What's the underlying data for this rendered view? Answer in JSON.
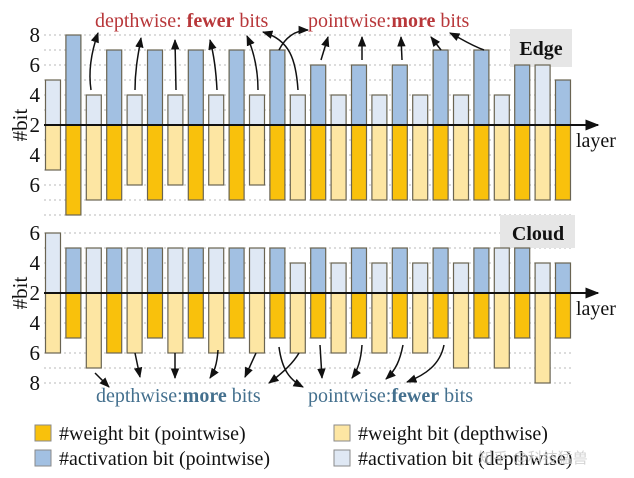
{
  "chart_data": [
    {
      "type": "bar",
      "panel": "Edge",
      "title": "Edge",
      "ylabel": "#bit",
      "xlabel": "layer",
      "layer_types": [
        "depthwise",
        "pointwise",
        "depthwise",
        "pointwise",
        "depthwise",
        "pointwise",
        "depthwise",
        "pointwise",
        "depthwise",
        "pointwise",
        "depthwise",
        "pointwise",
        "depthwise",
        "pointwise",
        "depthwise",
        "pointwise",
        "depthwise",
        "pointwise",
        "depthwise",
        "pointwise",
        "depthwise",
        "pointwise",
        "depthwise",
        "pointwise",
        "depthwise",
        "pointwise"
      ],
      "series": [
        {
          "name": "#activation bit",
          "direction": "up",
          "values": [
            5,
            8,
            4,
            7,
            4,
            7,
            4,
            7,
            4,
            7,
            4,
            7,
            4,
            6,
            4,
            6,
            4,
            6,
            4,
            7,
            4,
            7,
            4,
            6,
            6,
            5
          ]
        },
        {
          "name": "#weight bit",
          "direction": "down",
          "values": [
            5,
            8,
            7,
            7,
            6,
            7,
            6,
            7,
            6,
            7,
            6,
            7,
            7,
            7,
            7,
            7,
            7,
            7,
            7,
            7,
            7,
            7,
            7,
            7,
            7,
            7
          ]
        }
      ],
      "y_ticks_up": [
        "2",
        "4",
        "6",
        "8"
      ],
      "y_ticks_down": [
        "4",
        "6"
      ],
      "ylim_up": [
        2,
        8
      ],
      "ylim_down": [
        2,
        8
      ],
      "grid": true,
      "annotations": [
        {
          "text_plain": "depthwise: ",
          "text_bold": "fewer",
          "text_tail": " bits",
          "color": "#b8373a"
        },
        {
          "text_plain": "pointwise:",
          "text_bold": "more",
          "text_tail": " bits",
          "color": "#b8373a"
        }
      ]
    },
    {
      "type": "bar",
      "panel": "Cloud",
      "title": "Cloud",
      "ylabel": "#bit",
      "xlabel": "layer",
      "layer_types": [
        "depthwise",
        "pointwise",
        "depthwise",
        "pointwise",
        "depthwise",
        "pointwise",
        "depthwise",
        "pointwise",
        "depthwise",
        "pointwise",
        "depthwise",
        "pointwise",
        "depthwise",
        "pointwise",
        "depthwise",
        "pointwise",
        "depthwise",
        "pointwise",
        "depthwise",
        "pointwise",
        "depthwise",
        "pointwise",
        "depthwise",
        "pointwise",
        "depthwise",
        "pointwise"
      ],
      "series": [
        {
          "name": "#activation bit",
          "direction": "up",
          "values": [
            6,
            5,
            5,
            5,
            5,
            5,
            5,
            5,
            5,
            5,
            5,
            5,
            4,
            5,
            4,
            5,
            4,
            5,
            4,
            5,
            4,
            5,
            5,
            5,
            4,
            4
          ]
        },
        {
          "name": "#weight bit",
          "direction": "down",
          "values": [
            6,
            5,
            7,
            6,
            6,
            5,
            6,
            5,
            6,
            5,
            6,
            5,
            6,
            5,
            6,
            5,
            6,
            5,
            6,
            5,
            7,
            5,
            7,
            5,
            8,
            5
          ]
        }
      ],
      "y_ticks_up": [
        "2",
        "4",
        "6"
      ],
      "y_ticks_down": [
        "4",
        "6",
        "8"
      ],
      "ylim_up": [
        2,
        6
      ],
      "ylim_down": [
        2,
        8
      ],
      "grid": true,
      "annotations": [
        {
          "text_plain": "depthwise:",
          "text_bold": "more",
          "text_tail": " bits",
          "color": "#44708e"
        },
        {
          "text_plain": "pointwise:",
          "text_bold": "fewer",
          "text_tail": " bits",
          "color": "#44708e"
        }
      ]
    }
  ],
  "colors": {
    "weight_pointwise": "#f9c10c",
    "weight_depthwise": "#fde6a3",
    "activation_pointwise": "#a2c0e2",
    "activation_depthwise": "#dfe8f4",
    "bar_stroke": "#6a6452",
    "annotation_red": "#b8373a",
    "annotation_blue": "#44708e",
    "panel_label_bg": "#e6e6e6"
  },
  "legend": [
    {
      "key": "weight_pointwise",
      "label": "#weight bit (pointwise)"
    },
    {
      "key": "weight_depthwise",
      "label": "#weight bit (depthwise)"
    },
    {
      "key": "activation_pointwise",
      "label": "#activation bit (pointwise)"
    },
    {
      "key": "activation_depthwise",
      "label": "#activation bit (depthwise)"
    }
  ],
  "legend_position": "bottom",
  "watermark": "知乎 @科技猛兽"
}
